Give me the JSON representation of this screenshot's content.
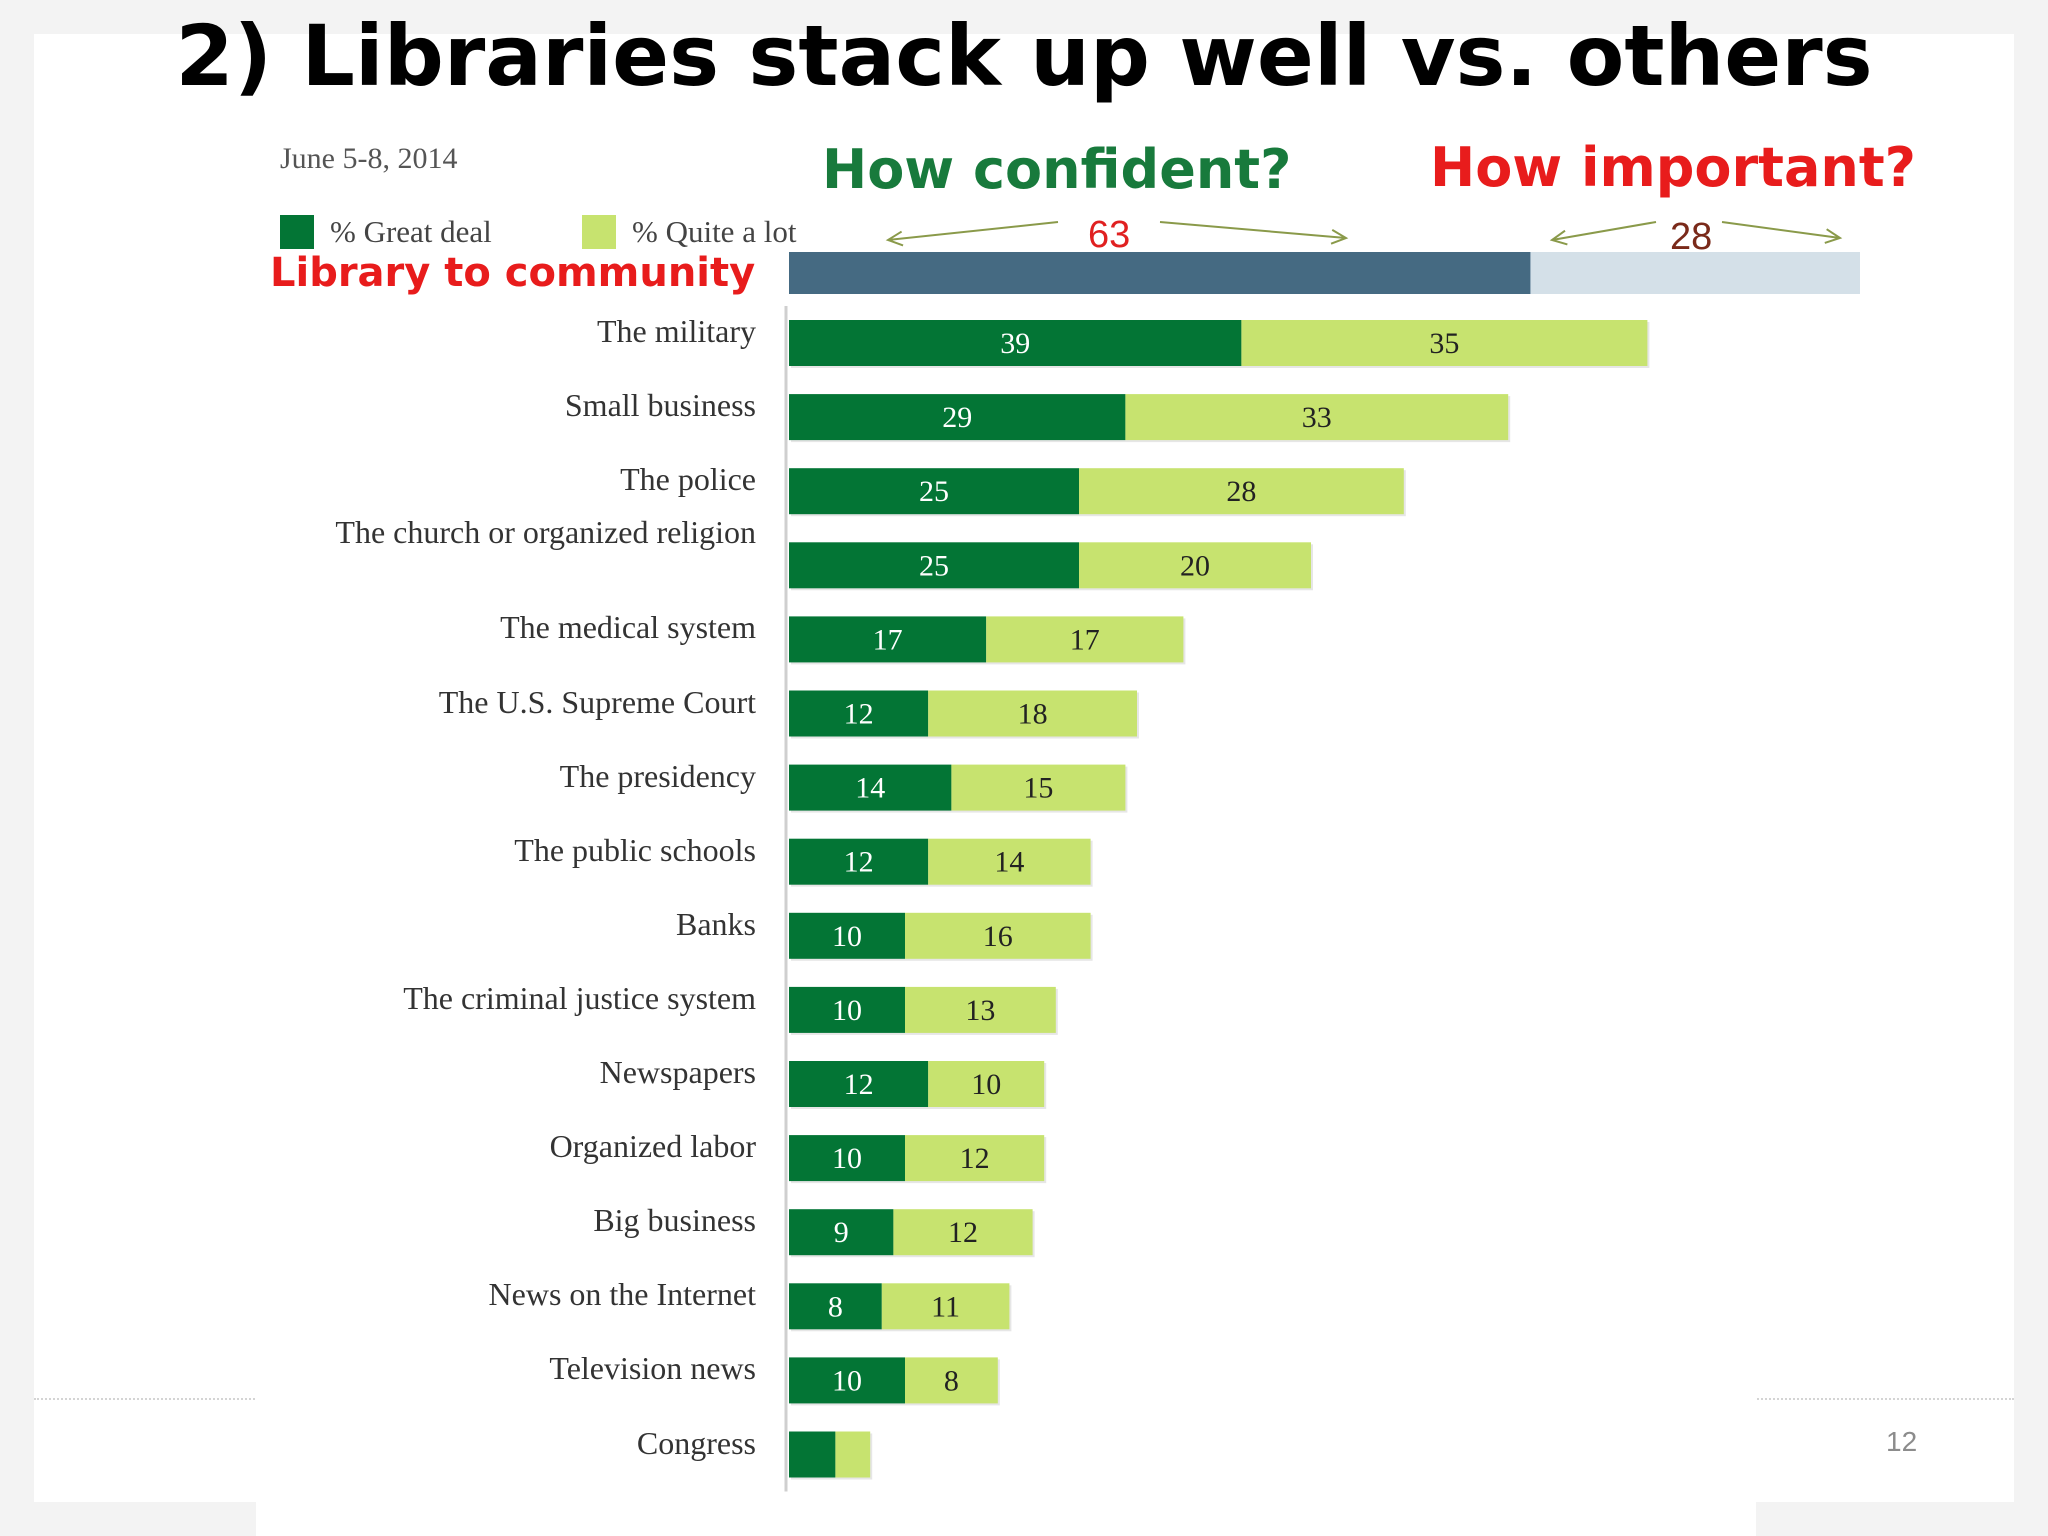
{
  "slide": {
    "title": "2) Libraries stack up well vs. others",
    "page_number": "12"
  },
  "annotations": {
    "confident": "How confident?",
    "important": "How important?",
    "library": "Library to community",
    "library_confident_value": "63",
    "library_important_value": "28"
  },
  "colors": {
    "great_deal": "#037535",
    "quite_a_lot": "#c7e36f",
    "library_dark": "#456a82",
    "library_light": "#d4e0e8",
    "arrow": "#8a9a4a"
  },
  "chart_data": {
    "type": "bar",
    "orientation": "horizontal",
    "stacked": true,
    "subtitle": "June 5-8, 2014",
    "categories": [
      "The military",
      "Small business",
      "The police",
      "The church or organized religion",
      "The medical system",
      "The U.S. Supreme Court",
      "The presidency",
      "The public schools",
      "Banks",
      "The criminal justice system",
      "Newspapers",
      "Organized labor",
      "Big business",
      "News on the Internet",
      "Television news",
      "Congress"
    ],
    "series": [
      {
        "name": "% Great deal",
        "values": [
          39,
          29,
          25,
          25,
          17,
          12,
          14,
          12,
          10,
          10,
          12,
          10,
          9,
          8,
          10,
          4
        ],
        "labels": [
          "39",
          "29",
          "25",
          "25",
          "17",
          "12",
          "14",
          "12",
          "10",
          "10",
          "12",
          "10",
          "9",
          "8",
          "10",
          ""
        ]
      },
      {
        "name": "% Quite a lot",
        "values": [
          35,
          33,
          28,
          20,
          17,
          18,
          15,
          14,
          16,
          13,
          10,
          12,
          12,
          11,
          8,
          3
        ],
        "labels": [
          "35",
          "33",
          "28",
          "20",
          "17",
          "18",
          "15",
          "14",
          "16",
          "13",
          "10",
          "12",
          "12",
          "11",
          "8",
          ""
        ]
      }
    ],
    "library_to_community": {
      "confident": 63,
      "important": 28
    },
    "legend_position": "top-left",
    "grid": false
  }
}
